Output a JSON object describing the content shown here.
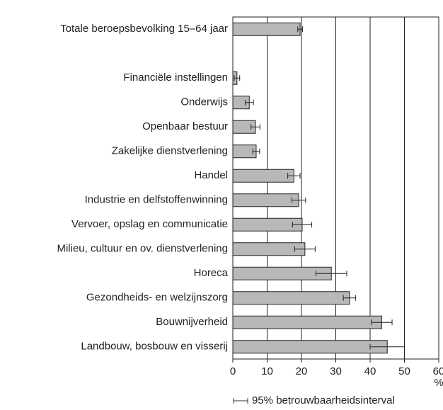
{
  "chart_data": {
    "type": "hbar",
    "categories": [
      "Totale beroepsbevolking  15–64 jaar",
      null,
      "Financiële instellingen",
      "Onderwijs",
      "Openbaar bestuur",
      "Zakelijke dienstverlening",
      "Handel",
      "Industrie en delfstoffenwinning",
      "Vervoer, opslag en communicatie",
      "Milieu, cultuur en ov. dienstverlening",
      "Horeca",
      "Gezondheids- en welzijnszorg",
      "Bouwnijverheid",
      "Landbouw, bosbouw en visserij"
    ],
    "values": [
      19.6,
      null,
      1.2,
      4.8,
      6.6,
      6.8,
      17.8,
      19.2,
      20.2,
      21.0,
      28.7,
      34.0,
      43.4,
      45.0
    ],
    "errors": [
      0.7,
      null,
      0.8,
      1.2,
      1.3,
      1.0,
      1.8,
      2.0,
      2.8,
      3.0,
      4.5,
      1.8,
      3.0,
      5.0
    ],
    "color": "#b8b8b8",
    "xlim": [
      0,
      60
    ],
    "xticks": [
      0,
      10,
      20,
      30,
      40,
      50,
      60
    ],
    "grid": true,
    "x_unit": "%",
    "legend_label": "95% betrouwbaarheidsinterval"
  }
}
